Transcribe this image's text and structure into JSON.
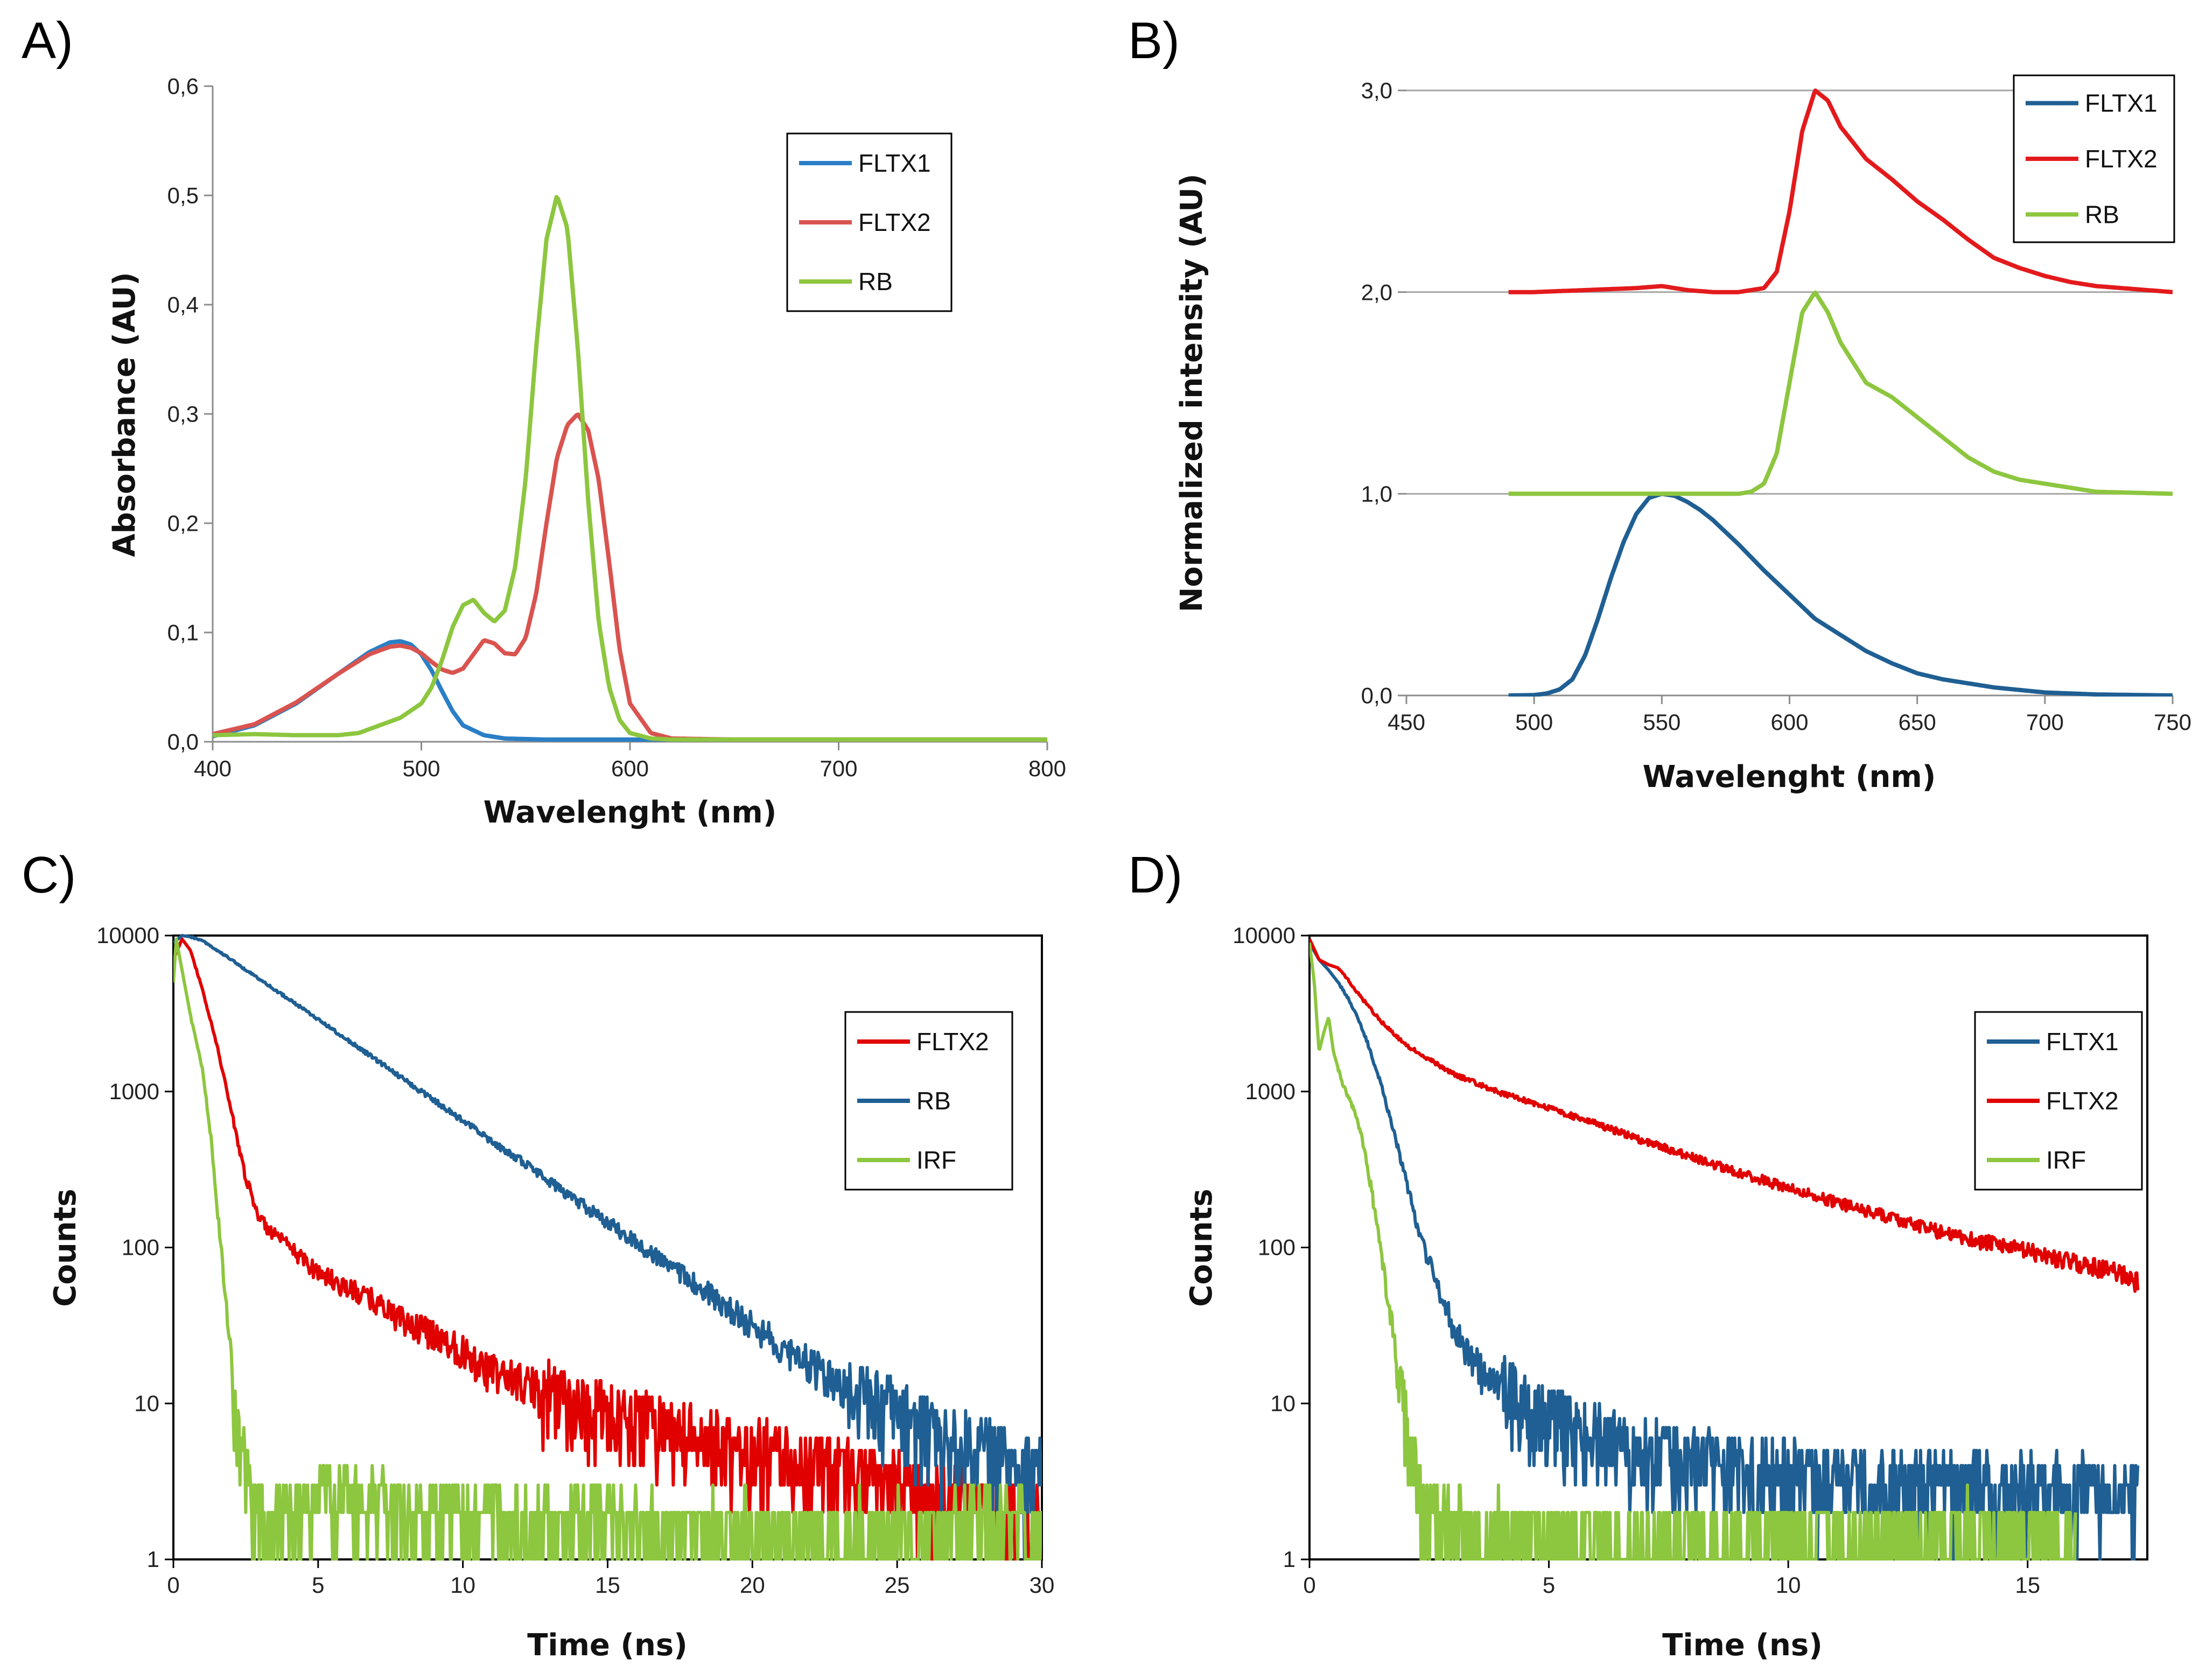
{
  "chart_data": [
    {
      "panel": "A)",
      "type": "line",
      "xlabel": "Wavelenght (nm)",
      "ylabel": "Absorbance (AU)",
      "xlim": [
        400,
        800
      ],
      "ylim": [
        0,
        0.6
      ],
      "xticks": [
        400,
        500,
        600,
        700,
        800
      ],
      "xtick_labels": [
        "400",
        "500",
        "600",
        "700",
        "800"
      ],
      "yticks": [
        0,
        0.1,
        0.2,
        0.3,
        0.4,
        0.5,
        0.6
      ],
      "ytick_labels": [
        "0,0",
        "0,1",
        "0,2",
        "0,3",
        "0,4",
        "0,5",
        "0,6"
      ],
      "grid": false,
      "frame": "left-bottom",
      "legend_position": "top-right",
      "series": [
        {
          "name": "FLTX1",
          "color": "#2a7fc6",
          "x": [
            400,
            420,
            440,
            460,
            475,
            485,
            490,
            495,
            500,
            505,
            510,
            515,
            520,
            530,
            540,
            560,
            600,
            700,
            800
          ],
          "y": [
            0.005,
            0.015,
            0.035,
            0.062,
            0.082,
            0.091,
            0.092,
            0.089,
            0.08,
            0.065,
            0.046,
            0.028,
            0.015,
            0.006,
            0.003,
            0.002,
            0.002,
            0.002,
            0.002
          ]
        },
        {
          "name": "FLTX2",
          "color": "#d9534f",
          "x": [
            400,
            420,
            440,
            460,
            475,
            485,
            490,
            495,
            500,
            505,
            510,
            515,
            520,
            525,
            530,
            535,
            540,
            545,
            550,
            555,
            560,
            565,
            570,
            575,
            580,
            585,
            590,
            595,
            600,
            610,
            620,
            650,
            700,
            800
          ],
          "y": [
            0.007,
            0.016,
            0.036,
            0.062,
            0.08,
            0.087,
            0.088,
            0.086,
            0.081,
            0.073,
            0.066,
            0.063,
            0.067,
            0.08,
            0.093,
            0.09,
            0.081,
            0.08,
            0.095,
            0.135,
            0.2,
            0.26,
            0.29,
            0.3,
            0.285,
            0.24,
            0.165,
            0.085,
            0.035,
            0.008,
            0.003,
            0.002,
            0.002,
            0.002
          ]
        },
        {
          "name": "RB",
          "color": "#8dc63f",
          "x": [
            400,
            420,
            440,
            460,
            470,
            480,
            490,
            500,
            505,
            510,
            515,
            520,
            525,
            530,
            535,
            540,
            545,
            550,
            555,
            560,
            565,
            570,
            575,
            580,
            585,
            590,
            595,
            600,
            610,
            620,
            650,
            700,
            800
          ],
          "y": [
            0.006,
            0.007,
            0.006,
            0.006,
            0.008,
            0.015,
            0.022,
            0.035,
            0.05,
            0.075,
            0.105,
            0.125,
            0.13,
            0.118,
            0.11,
            0.12,
            0.16,
            0.24,
            0.36,
            0.46,
            0.5,
            0.47,
            0.36,
            0.22,
            0.11,
            0.05,
            0.02,
            0.008,
            0.003,
            0.002,
            0.002,
            0.002,
            0.002
          ]
        }
      ]
    },
    {
      "panel": "B)",
      "type": "line",
      "xlabel": "Wavelenght (nm)",
      "ylabel": "Normalized intensity (AU)",
      "xlim": [
        450,
        750
      ],
      "ylim": [
        0,
        3
      ],
      "xticks": [
        450,
        500,
        550,
        600,
        650,
        700,
        750
      ],
      "xtick_labels": [
        "450",
        "500",
        "550",
        "600",
        "650",
        "700",
        "750"
      ],
      "yticks": [
        0,
        1,
        2,
        3
      ],
      "ytick_labels": [
        "0,0",
        "1,0",
        "2,0",
        "3,0"
      ],
      "grid": true,
      "frame": "bottom",
      "legend_position": "top-right",
      "series": [
        {
          "name": "FLTX1",
          "color": "#1f5f93",
          "x": [
            490,
            500,
            505,
            510,
            515,
            520,
            525,
            530,
            535,
            540,
            545,
            550,
            555,
            560,
            565,
            570,
            580,
            590,
            600,
            610,
            620,
            630,
            640,
            650,
            660,
            680,
            700,
            720,
            750
          ],
          "y": [
            0.0,
            0.002,
            0.01,
            0.03,
            0.08,
            0.2,
            0.38,
            0.58,
            0.76,
            0.9,
            0.98,
            1.0,
            0.99,
            0.96,
            0.92,
            0.87,
            0.75,
            0.62,
            0.5,
            0.38,
            0.3,
            0.22,
            0.16,
            0.11,
            0.08,
            0.04,
            0.015,
            0.005,
            0.0
          ]
        },
        {
          "name": "FLTX2",
          "color": "#e31a1c",
          "x": [
            490,
            500,
            520,
            540,
            550,
            560,
            570,
            580,
            590,
            595,
            600,
            605,
            610,
            615,
            620,
            630,
            640,
            650,
            660,
            670,
            680,
            690,
            700,
            710,
            720,
            730,
            740,
            750
          ],
          "y": [
            2.0,
            2.0,
            2.01,
            2.02,
            2.03,
            2.01,
            2.0,
            2.0,
            2.02,
            2.1,
            2.4,
            2.8,
            3.0,
            2.95,
            2.82,
            2.66,
            2.56,
            2.45,
            2.36,
            2.26,
            2.17,
            2.12,
            2.08,
            2.05,
            2.03,
            2.02,
            2.01,
            2.0
          ]
        },
        {
          "name": "RB",
          "color": "#8dc63f",
          "x": [
            490,
            500,
            520,
            540,
            560,
            570,
            580,
            585,
            590,
            595,
            600,
            605,
            610,
            615,
            620,
            630,
            640,
            650,
            660,
            670,
            680,
            690,
            700,
            710,
            720,
            750
          ],
          "y": [
            1.0,
            1.0,
            1.0,
            1.0,
            1.0,
            1.0,
            1.0,
            1.01,
            1.05,
            1.2,
            1.55,
            1.9,
            2.0,
            1.9,
            1.75,
            1.55,
            1.48,
            1.38,
            1.28,
            1.18,
            1.11,
            1.07,
            1.05,
            1.03,
            1.01,
            1.0
          ]
        }
      ]
    },
    {
      "panel": "C)",
      "type": "line",
      "yscale": "log",
      "xlabel": "Time (ns)",
      "ylabel": "Counts",
      "xlim": [
        0,
        30
      ],
      "ylim": [
        1,
        10000
      ],
      "xticks": [
        0,
        5,
        10,
        15,
        20,
        25,
        30
      ],
      "xtick_labels": [
        "0",
        "5",
        "10",
        "15",
        "20",
        "25",
        "30"
      ],
      "yticks": [
        1,
        10,
        100,
        1000,
        10000
      ],
      "ytick_labels": [
        "1",
        "10",
        "100",
        "1000",
        "10000"
      ],
      "grid": false,
      "frame": "box",
      "legend_position": "right",
      "series": [
        {
          "name": "FLTX2",
          "color": "#e00000",
          "x": [
            0,
            0.3,
            0.6,
            1,
            1.5,
            2,
            2.5,
            3,
            3.5,
            4,
            5,
            6,
            7,
            8,
            9,
            10,
            11,
            12,
            13,
            14,
            15,
            16,
            17,
            18,
            19,
            20,
            21,
            22,
            23,
            24,
            25,
            26,
            27,
            28,
            29,
            30
          ],
          "y": [
            7000,
            9500,
            8000,
            4500,
            2000,
            750,
            280,
            150,
            120,
            100,
            70,
            55,
            45,
            33,
            28,
            22,
            16,
            14,
            11,
            9,
            8,
            7,
            6,
            5.5,
            5,
            4.5,
            4,
            3.6,
            3.3,
            3,
            2.6,
            2.4,
            2.2,
            2,
            1.8,
            1.6
          ]
        },
        {
          "name": "RB",
          "color": "#1f5f93",
          "x": [
            0,
            0.3,
            0.6,
            1,
            2,
            3,
            4,
            5,
            6,
            7,
            8,
            9,
            10,
            11,
            12,
            13,
            14,
            15,
            16,
            17,
            18,
            19,
            20,
            21,
            22,
            23,
            24,
            25,
            26,
            27,
            28,
            29,
            30
          ],
          "y": [
            9000,
            10000,
            9800,
            9300,
            7000,
            5200,
            3900,
            2900,
            2150,
            1600,
            1180,
            880,
            650,
            480,
            360,
            265,
            196,
            145,
            108,
            80,
            59,
            44,
            32,
            24,
            18,
            13,
            10,
            8,
            6,
            5,
            4.5,
            4,
            3.5
          ]
        },
        {
          "name": "IRF",
          "color": "#8dc63f",
          "x": [
            0,
            0.1,
            0.3,
            0.6,
            1,
            1.3,
            1.6,
            1.9,
            2.1,
            2.4,
            2.8,
            3.3,
            5.5,
            8.5,
            10,
            12,
            14,
            17,
            22,
            26,
            29,
            30
          ],
          "y": [
            5000,
            9500,
            6000,
            3000,
            1400,
            500,
            120,
            30,
            10,
            4,
            2,
            1.4,
            2.6,
            1.6,
            1.8,
            1.5,
            1.7,
            1.3,
            1.2,
            1.3,
            1.5,
            1.2
          ]
        }
      ]
    },
    {
      "panel": "D)",
      "type": "line",
      "yscale": "log",
      "xlabel": "Time (ns)",
      "ylabel": "Counts",
      "xlim": [
        0,
        17.5
      ],
      "ylim": [
        1,
        10000
      ],
      "xticks": [
        0,
        5,
        10,
        15
      ],
      "xtick_labels": [
        "0",
        "5",
        "10",
        "15"
      ],
      "yticks": [
        1,
        10,
        100,
        1000,
        10000
      ],
      "ytick_labels": [
        "1",
        "10",
        "100",
        "1000",
        "10000"
      ],
      "grid": false,
      "frame": "box",
      "legend_position": "right",
      "series": [
        {
          "name": "FLTX1",
          "color": "#1f5f93",
          "x": [
            0,
            0.2,
            0.4,
            0.6,
            0.8,
            1,
            1.2,
            1.5,
            1.8,
            2,
            2.2,
            2.5,
            2.8,
            3,
            3.3,
            3.6,
            4,
            4.5,
            5,
            6,
            7,
            8,
            9,
            10,
            11,
            12,
            13,
            14,
            15,
            16,
            17.3
          ],
          "y": [
            9000,
            7000,
            6000,
            5000,
            4000,
            3000,
            2100,
            1100,
            500,
            280,
            160,
            80,
            45,
            32,
            22,
            16,
            12,
            9,
            7.5,
            5.5,
            4.5,
            4,
            3.6,
            3.3,
            3,
            2.8,
            2.7,
            2.6,
            2.5,
            2.4,
            2.3
          ]
        },
        {
          "name": "FLTX2",
          "color": "#e00000",
          "x": [
            0,
            0.2,
            0.4,
            0.6,
            0.8,
            1,
            1.5,
            2,
            3,
            4,
            5,
            6,
            7,
            8,
            9,
            10,
            11,
            12,
            13,
            14,
            15,
            16,
            17,
            17.3
          ],
          "y": [
            9500,
            7000,
            6500,
            6200,
            5200,
            4300,
            2800,
            2000,
            1300,
            980,
            780,
            620,
            480,
            380,
            300,
            240,
            195,
            160,
            130,
            110,
            95,
            80,
            68,
            60
          ]
        },
        {
          "name": "IRF",
          "color": "#8dc63f",
          "x": [
            0,
            0.1,
            0.2,
            0.3,
            0.4,
            0.5,
            0.7,
            0.9,
            1.1,
            1.3,
            1.5,
            1.7,
            1.9,
            2.1,
            2.3,
            2.6,
            3,
            3.5,
            4,
            4.5,
            6,
            8,
            10,
            12,
            14,
            16
          ],
          "y": [
            9000,
            5000,
            1800,
            2400,
            3000,
            1800,
            1100,
            800,
            500,
            230,
            90,
            35,
            12,
            5,
            2.5,
            1.6,
            1.6,
            1.2,
            1.3,
            1.2,
            1.1,
            1.1,
            1.2,
            1.1,
            1.2,
            1.1
          ]
        }
      ]
    }
  ]
}
